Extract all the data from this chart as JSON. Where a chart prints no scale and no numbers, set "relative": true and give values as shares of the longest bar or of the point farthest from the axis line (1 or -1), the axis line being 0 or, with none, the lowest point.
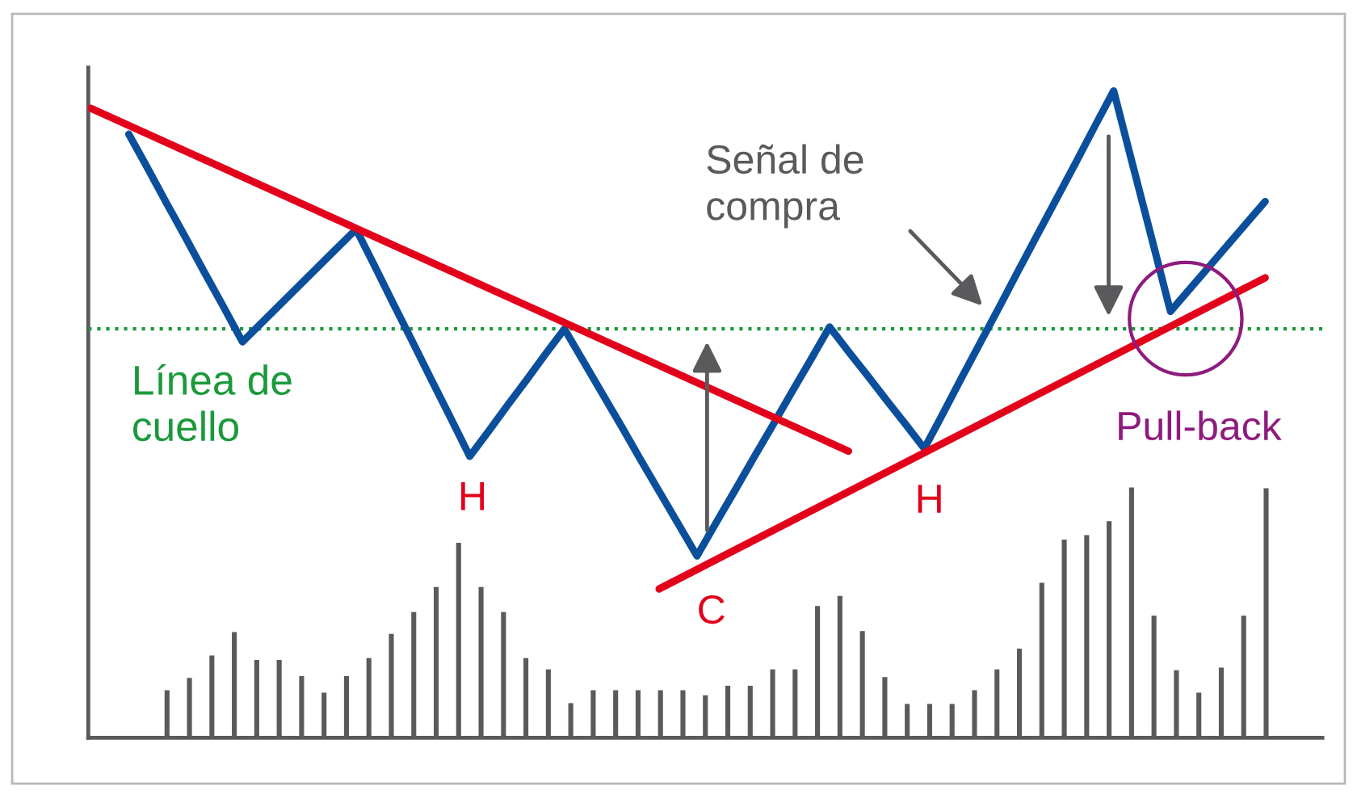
{
  "chart_data": [
    {
      "type": "line",
      "relative": true,
      "grid": false,
      "marker": "none",
      "categories": [
        null,
        null,
        null,
        null,
        null,
        null,
        null,
        null,
        null,
        null,
        null,
        null,
        null,
        null,
        null,
        null,
        null,
        null,
        null,
        null,
        null,
        null,
        null,
        null,
        null,
        null,
        null,
        null,
        null,
        null,
        null,
        null,
        null,
        null,
        null,
        null,
        null,
        null,
        null,
        null,
        null,
        null,
        null,
        null,
        null,
        null,
        null,
        null,
        null,
        null,
        null,
        null,
        null,
        null,
        null,
        null,
        null,
        null,
        null,
        null,
        null,
        null,
        null,
        null,
        null,
        null
      ],
      "series": [
        {
          "color": "#0b4f9c",
          "values": [
            null,
            null,
            0.933,
            0.88,
            0.826,
            0.773,
            0.719,
            0.666,
            0.612,
            0.641,
            0.67,
            0.699,
            0.728,
            0.757,
            0.786,
            0.728,
            0.669,
            0.611,
            0.552,
            0.494,
            0.435,
            0.474,
            0.514,
            0.553,
            0.593,
            0.632,
            0.582,
            0.532,
            0.482,
            0.431,
            0.381,
            0.331,
            0.281,
            0.332,
            0.382,
            0.433,
            0.483,
            0.534,
            0.584,
            0.635,
            0.597,
            0.56,
            0.522,
            0.485,
            0.447,
            0.502,
            0.558,
            0.613,
            0.668,
            0.724,
            0.779,
            0.834,
            0.889,
            0.945,
            1,
            0.886,
            0.773,
            0.659,
            0.693,
            0.727,
            0.761,
            0.795,
            0.829,
            null,
            null,
            null
          ]
        },
        {
          "color": "#e2001a",
          "values": [
            0.973,
            null,
            null,
            null,
            null,
            null,
            null,
            null,
            null,
            null,
            null,
            null,
            null,
            null,
            null,
            null,
            null,
            null,
            null,
            null,
            null,
            null,
            null,
            null,
            null,
            null,
            null,
            null,
            null,
            null,
            null,
            null,
            null,
            null,
            null,
            null,
            null,
            null,
            null,
            null,
            0.443,
            null,
            null,
            null,
            null,
            null,
            null,
            null,
            null,
            null,
            null,
            null,
            null,
            null,
            null,
            null,
            null,
            null,
            null,
            null,
            null,
            null,
            null,
            null,
            null,
            null
          ]
        },
        {
          "color": "#e2001a",
          "values": [
            null,
            null,
            null,
            null,
            null,
            null,
            null,
            null,
            null,
            null,
            null,
            null,
            null,
            null,
            null,
            null,
            null,
            null,
            null,
            null,
            null,
            null,
            null,
            null,
            null,
            null,
            null,
            null,
            null,
            null,
            0.23,
            null,
            null,
            null,
            null,
            null,
            null,
            null,
            null,
            null,
            null,
            null,
            null,
            null,
            null,
            null,
            null,
            null,
            null,
            null,
            null,
            null,
            null,
            null,
            null,
            null,
            null,
            null,
            null,
            null,
            null,
            null,
            0.711,
            null,
            null,
            null
          ]
        }
      ],
      "ref_lines": [
        {
          "axis": "y",
          "value": 0.632,
          "label": "Línea de\ncuello",
          "color": "#1a9a3a",
          "line_style": "dotted"
        }
      ],
      "annotations": [
        "Señal de\ncompra",
        "H",
        "C",
        "H",
        "Pull-back"
      ]
    },
    {
      "type": "bar",
      "relative": true,
      "grid": false,
      "categories": [
        null,
        null,
        null,
        null,
        null,
        null,
        null,
        null,
        null,
        null,
        null,
        null,
        null,
        null,
        null,
        null,
        null,
        null,
        null,
        null,
        null,
        null,
        null,
        null,
        null,
        null,
        null,
        null,
        null,
        null,
        null,
        null,
        null,
        null,
        null,
        null,
        null,
        null,
        null,
        null,
        null,
        null,
        null,
        null,
        null,
        null,
        null,
        null,
        null,
        null
      ],
      "series": [
        {
          "color": "#5a5a5c",
          "values": [
            0.19,
            0.239,
            0.329,
            0.422,
            0.311,
            0.311,
            0.246,
            0.18,
            0.246,
            0.318,
            0.415,
            0.502,
            0.602,
            0.779,
            0.602,
            0.502,
            0.318,
            0.273,
            0.138,
            0.19,
            0.19,
            0.19,
            0.19,
            0.19,
            0.17,
            0.208,
            0.208,
            0.273,
            0.273,
            0.526,
            0.567,
            0.426,
            0.242,
            0.135,
            0.135,
            0.135,
            0.19,
            0.273,
            0.356,
            0.619,
            0.792,
            0.81,
            0.865,
            1,
            0.488,
            0.27,
            0.18,
            0.28,
            0.488,
            0.997
          ]
        }
      ]
    }
  ]
}
